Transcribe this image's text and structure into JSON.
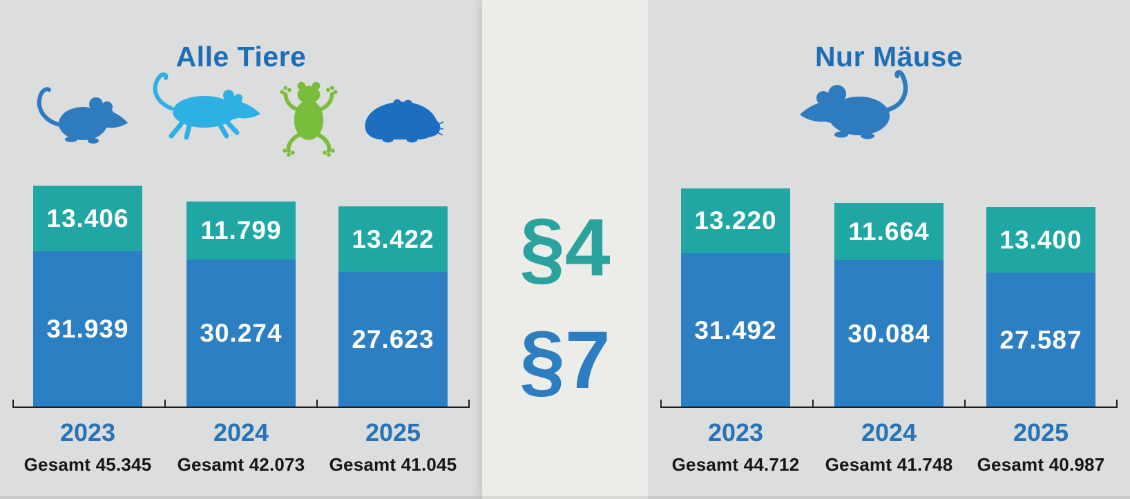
{
  "legend": {
    "p4_label": "§4",
    "p7_label": "§7"
  },
  "panels": [
    {
      "title": "Alle Tiere",
      "icons": [
        "mouse",
        "rat",
        "frog",
        "guinea-pig"
      ],
      "years": [
        {
          "year": "2023",
          "p4_label": "13.406",
          "p7_label": "31.939",
          "total_label": "Gesamt 45.345"
        },
        {
          "year": "2024",
          "p4_label": "11.799",
          "p7_label": "30.274",
          "total_label": "Gesamt 42.073"
        },
        {
          "year": "2025",
          "p4_label": "13.422",
          "p7_label": "27.623",
          "total_label": "Gesamt 41.045"
        }
      ]
    },
    {
      "title": "Nur Mäuse",
      "icons": [
        "mouse"
      ],
      "years": [
        {
          "year": "2023",
          "p4_label": "13.220",
          "p7_label": "31.492",
          "total_label": "Gesamt 44.712"
        },
        {
          "year": "2024",
          "p4_label": "11.664",
          "p7_label": "30.084",
          "total_label": "Gesamt 41.748"
        },
        {
          "year": "2025",
          "p4_label": "13.400",
          "p7_label": "27.587",
          "total_label": "Gesamt 40.987"
        }
      ]
    }
  ],
  "colors": {
    "panel_background": "#dcdddd",
    "center_background": "#ecede9",
    "par4_teal": "#21a7a3",
    "par7_blue": "#2c7fc2",
    "title_blue": "#1d6eb7",
    "year_blue": "#2673b8",
    "total_text": "#161616",
    "axis_line": "#1d1d1b",
    "value_text": "#ffffff",
    "mouse_icon_blue": "#2e7bc0",
    "rat_icon_lightblue": "#2fb0e5",
    "frog_icon_green": "#79bd3c",
    "guinea_pig_icon_blue": "#1b6ec0",
    "legend_p4_teal": "#2aa29d",
    "legend_p7_blue": "#2d7dc1"
  },
  "chart_data": [
    {
      "type": "bar",
      "stacked": true,
      "title": "Alle Tiere",
      "categories": [
        "2023",
        "2024",
        "2025"
      ],
      "series": [
        {
          "name": "§4",
          "values": [
            13406,
            11799,
            13422
          ],
          "color": "#21a7a3"
        },
        {
          "name": "§7",
          "values": [
            31939,
            30274,
            27623
          ],
          "color": "#2c7fc2"
        }
      ],
      "totals": [
        45345,
        42073,
        41045
      ],
      "total_labels": [
        "Gesamt 45.345",
        "Gesamt 42.073",
        "Gesamt 41.045"
      ],
      "value_labels": [
        [
          "13.406",
          "11.799",
          "13.422"
        ],
        [
          "31.939",
          "30.274",
          "27.623"
        ]
      ],
      "xlabel": "",
      "ylabel": "",
      "ylim": [
        0,
        45345
      ],
      "grid": false,
      "legend_position": "center-between-charts"
    },
    {
      "type": "bar",
      "stacked": true,
      "title": "Nur Mäuse",
      "categories": [
        "2023",
        "2024",
        "2025"
      ],
      "series": [
        {
          "name": "§4",
          "values": [
            13220,
            11664,
            13400
          ],
          "color": "#21a7a3"
        },
        {
          "name": "§7",
          "values": [
            31492,
            30084,
            27587
          ],
          "color": "#2c7fc2"
        }
      ],
      "totals": [
        44712,
        41748,
        40987
      ],
      "total_labels": [
        "Gesamt 44.712",
        "Gesamt 41.748",
        "Gesamt 40.987"
      ],
      "value_labels": [
        [
          "13.220",
          "11.664",
          "13.400"
        ],
        [
          "31.492",
          "30.084",
          "27.587"
        ]
      ],
      "xlabel": "",
      "ylabel": "",
      "ylim": [
        0,
        45345
      ],
      "grid": false,
      "legend_position": "center-between-charts"
    }
  ]
}
